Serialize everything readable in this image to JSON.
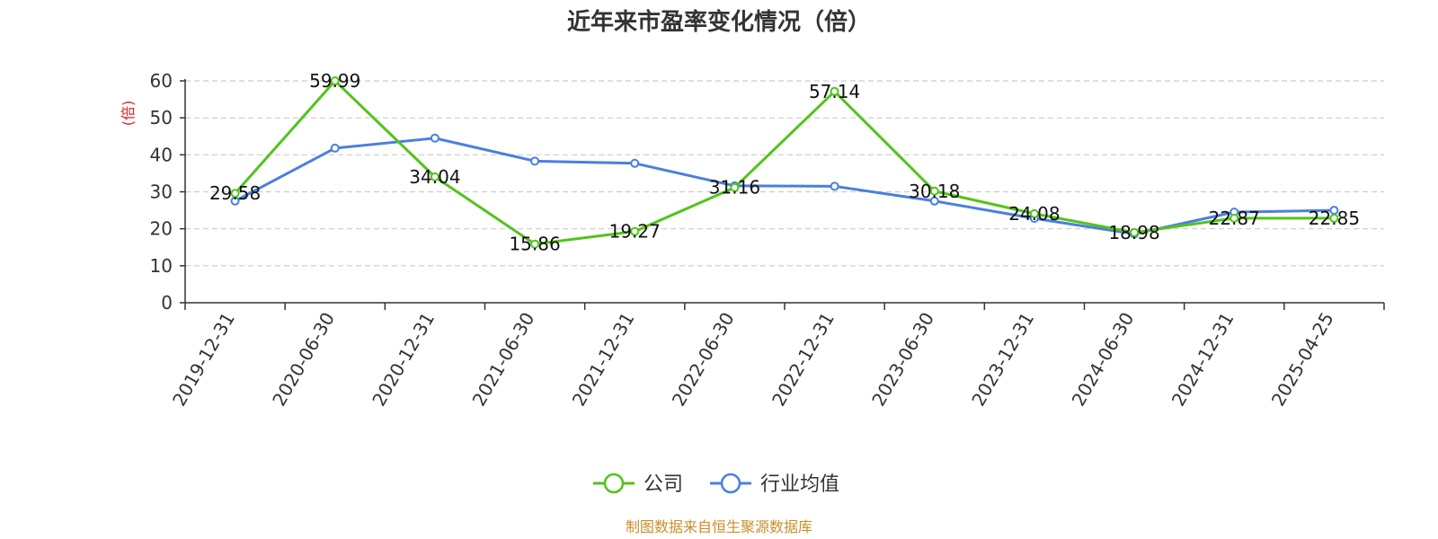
{
  "chart_data": {
    "type": "line",
    "title": "近年来市盈率变化情况（倍）",
    "ylabel": "(倍)",
    "xlabel": "",
    "ylim": [
      0,
      60
    ],
    "yticks": [
      0,
      10,
      20,
      30,
      40,
      50,
      60
    ],
    "grid": true,
    "legend_position": "bottom",
    "categories": [
      "2019-12-31",
      "2020-06-30",
      "2020-12-31",
      "2021-06-30",
      "2021-12-31",
      "2022-06-30",
      "2022-12-31",
      "2023-06-30",
      "2023-12-31",
      "2024-06-30",
      "2024-12-31",
      "2025-04-25"
    ],
    "series": [
      {
        "name": "公司",
        "color": "#52c41a",
        "values": [
          29.58,
          59.99,
          34.04,
          15.86,
          19.27,
          31.16,
          57.14,
          30.18,
          24.08,
          18.98,
          22.87,
          22.85
        ],
        "labels": [
          "29.58",
          "59.99",
          "34.04",
          "15.86",
          "19.27",
          "31.16",
          "57.14",
          "30.18",
          "24.08",
          "18.98",
          "22.87",
          "22.85"
        ]
      },
      {
        "name": "行业均值",
        "color": "#4a7fe0",
        "values": [
          27.5,
          41.8,
          44.5,
          38.3,
          37.7,
          31.6,
          31.5,
          27.5,
          22.8,
          18.6,
          24.5,
          25.0
        ]
      }
    ],
    "source": "制图数据来自恒生聚源数据库",
    "colors": {
      "axis": "#333333",
      "grid": "#cccccc",
      "ylabel": "#e02020",
      "source": "#c8902a"
    }
  }
}
